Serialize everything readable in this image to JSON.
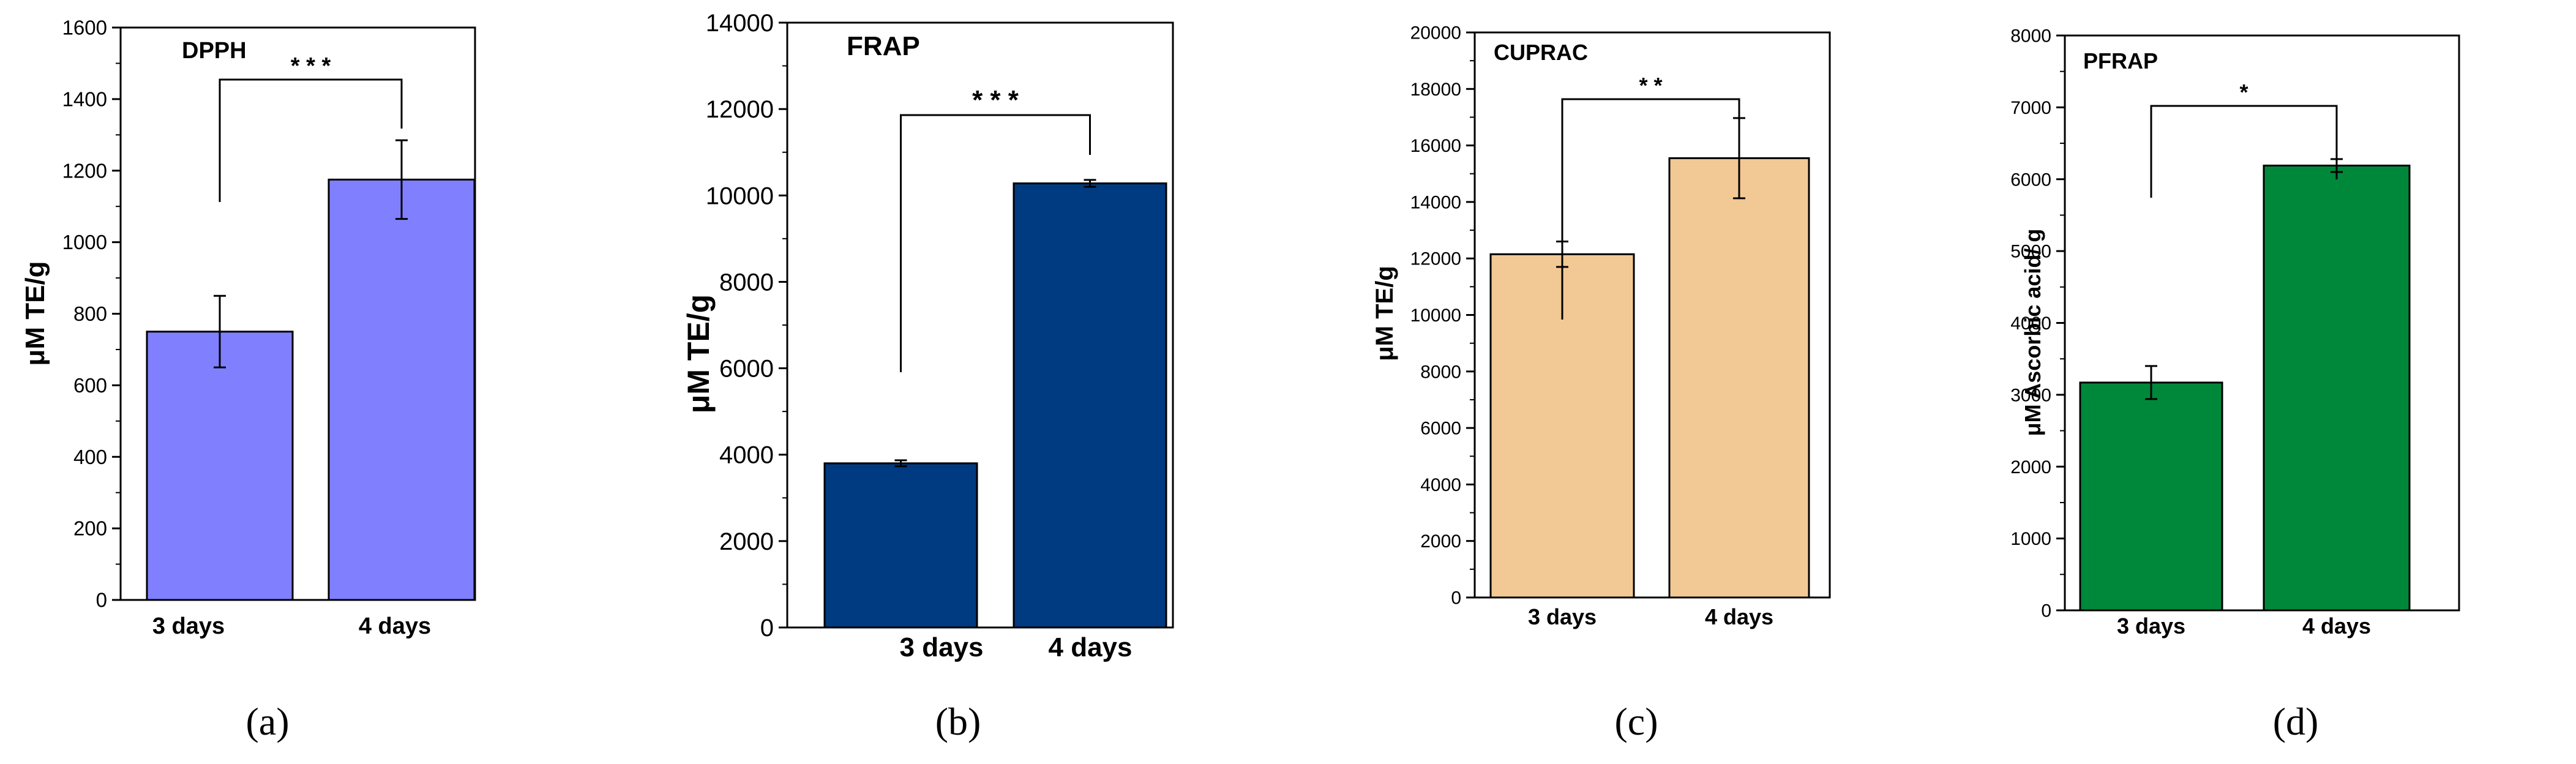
{
  "chart_data": [
    {
      "type": "bar",
      "title": "DPPH",
      "ylabel": "μM TE/g",
      "xlabel": "",
      "categories": [
        "3 days",
        "4 days"
      ],
      "values": [
        750,
        1175
      ],
      "errors": [
        100,
        110
      ],
      "bar_color": "#8080ff",
      "ylim": [
        0,
        1600
      ],
      "yticks": [
        0,
        200,
        400,
        600,
        800,
        1000,
        1200,
        1400,
        1600
      ],
      "significance": "* * *",
      "caption": "(a)"
    },
    {
      "type": "bar",
      "title": "FRAP",
      "ylabel": "μM TE/g",
      "xlabel": "",
      "categories": [
        "3 days",
        "4 days"
      ],
      "values": [
        3800,
        10280
      ],
      "errors": [
        70,
        80
      ],
      "bar_color": "#003a80",
      "ylim": [
        0,
        14000
      ],
      "yticks": [
        0,
        2000,
        4000,
        6000,
        8000,
        10000,
        12000,
        14000
      ],
      "significance": "* * *",
      "caption": "(b)"
    },
    {
      "type": "bar",
      "title": "CUPRAC",
      "ylabel": "μM TE/g",
      "xlabel": "",
      "categories": [
        "3 days",
        "4 days"
      ],
      "values": [
        12150,
        15550
      ],
      "errors": [
        450,
        1420
      ],
      "bar_color": "#f2c994",
      "ylim": [
        0,
        20000
      ],
      "yticks": [
        0,
        2000,
        4000,
        6000,
        8000,
        10000,
        12000,
        14000,
        16000,
        18000,
        20000
      ],
      "significance": "* *",
      "caption": "(c)"
    },
    {
      "type": "bar",
      "title": "PFRAP",
      "ylabel": "μM Ascorbic acid/ g",
      "xlabel": "",
      "categories": [
        "3 days",
        "4 days"
      ],
      "values": [
        3170,
        6190
      ],
      "errors": [
        230,
        90
      ],
      "bar_color": "#00883a",
      "ylim": [
        0,
        8000
      ],
      "yticks": [
        0,
        1000,
        2000,
        3000,
        4000,
        5000,
        6000,
        7000,
        8000
      ],
      "significance": "*",
      "caption": "(d)"
    }
  ]
}
